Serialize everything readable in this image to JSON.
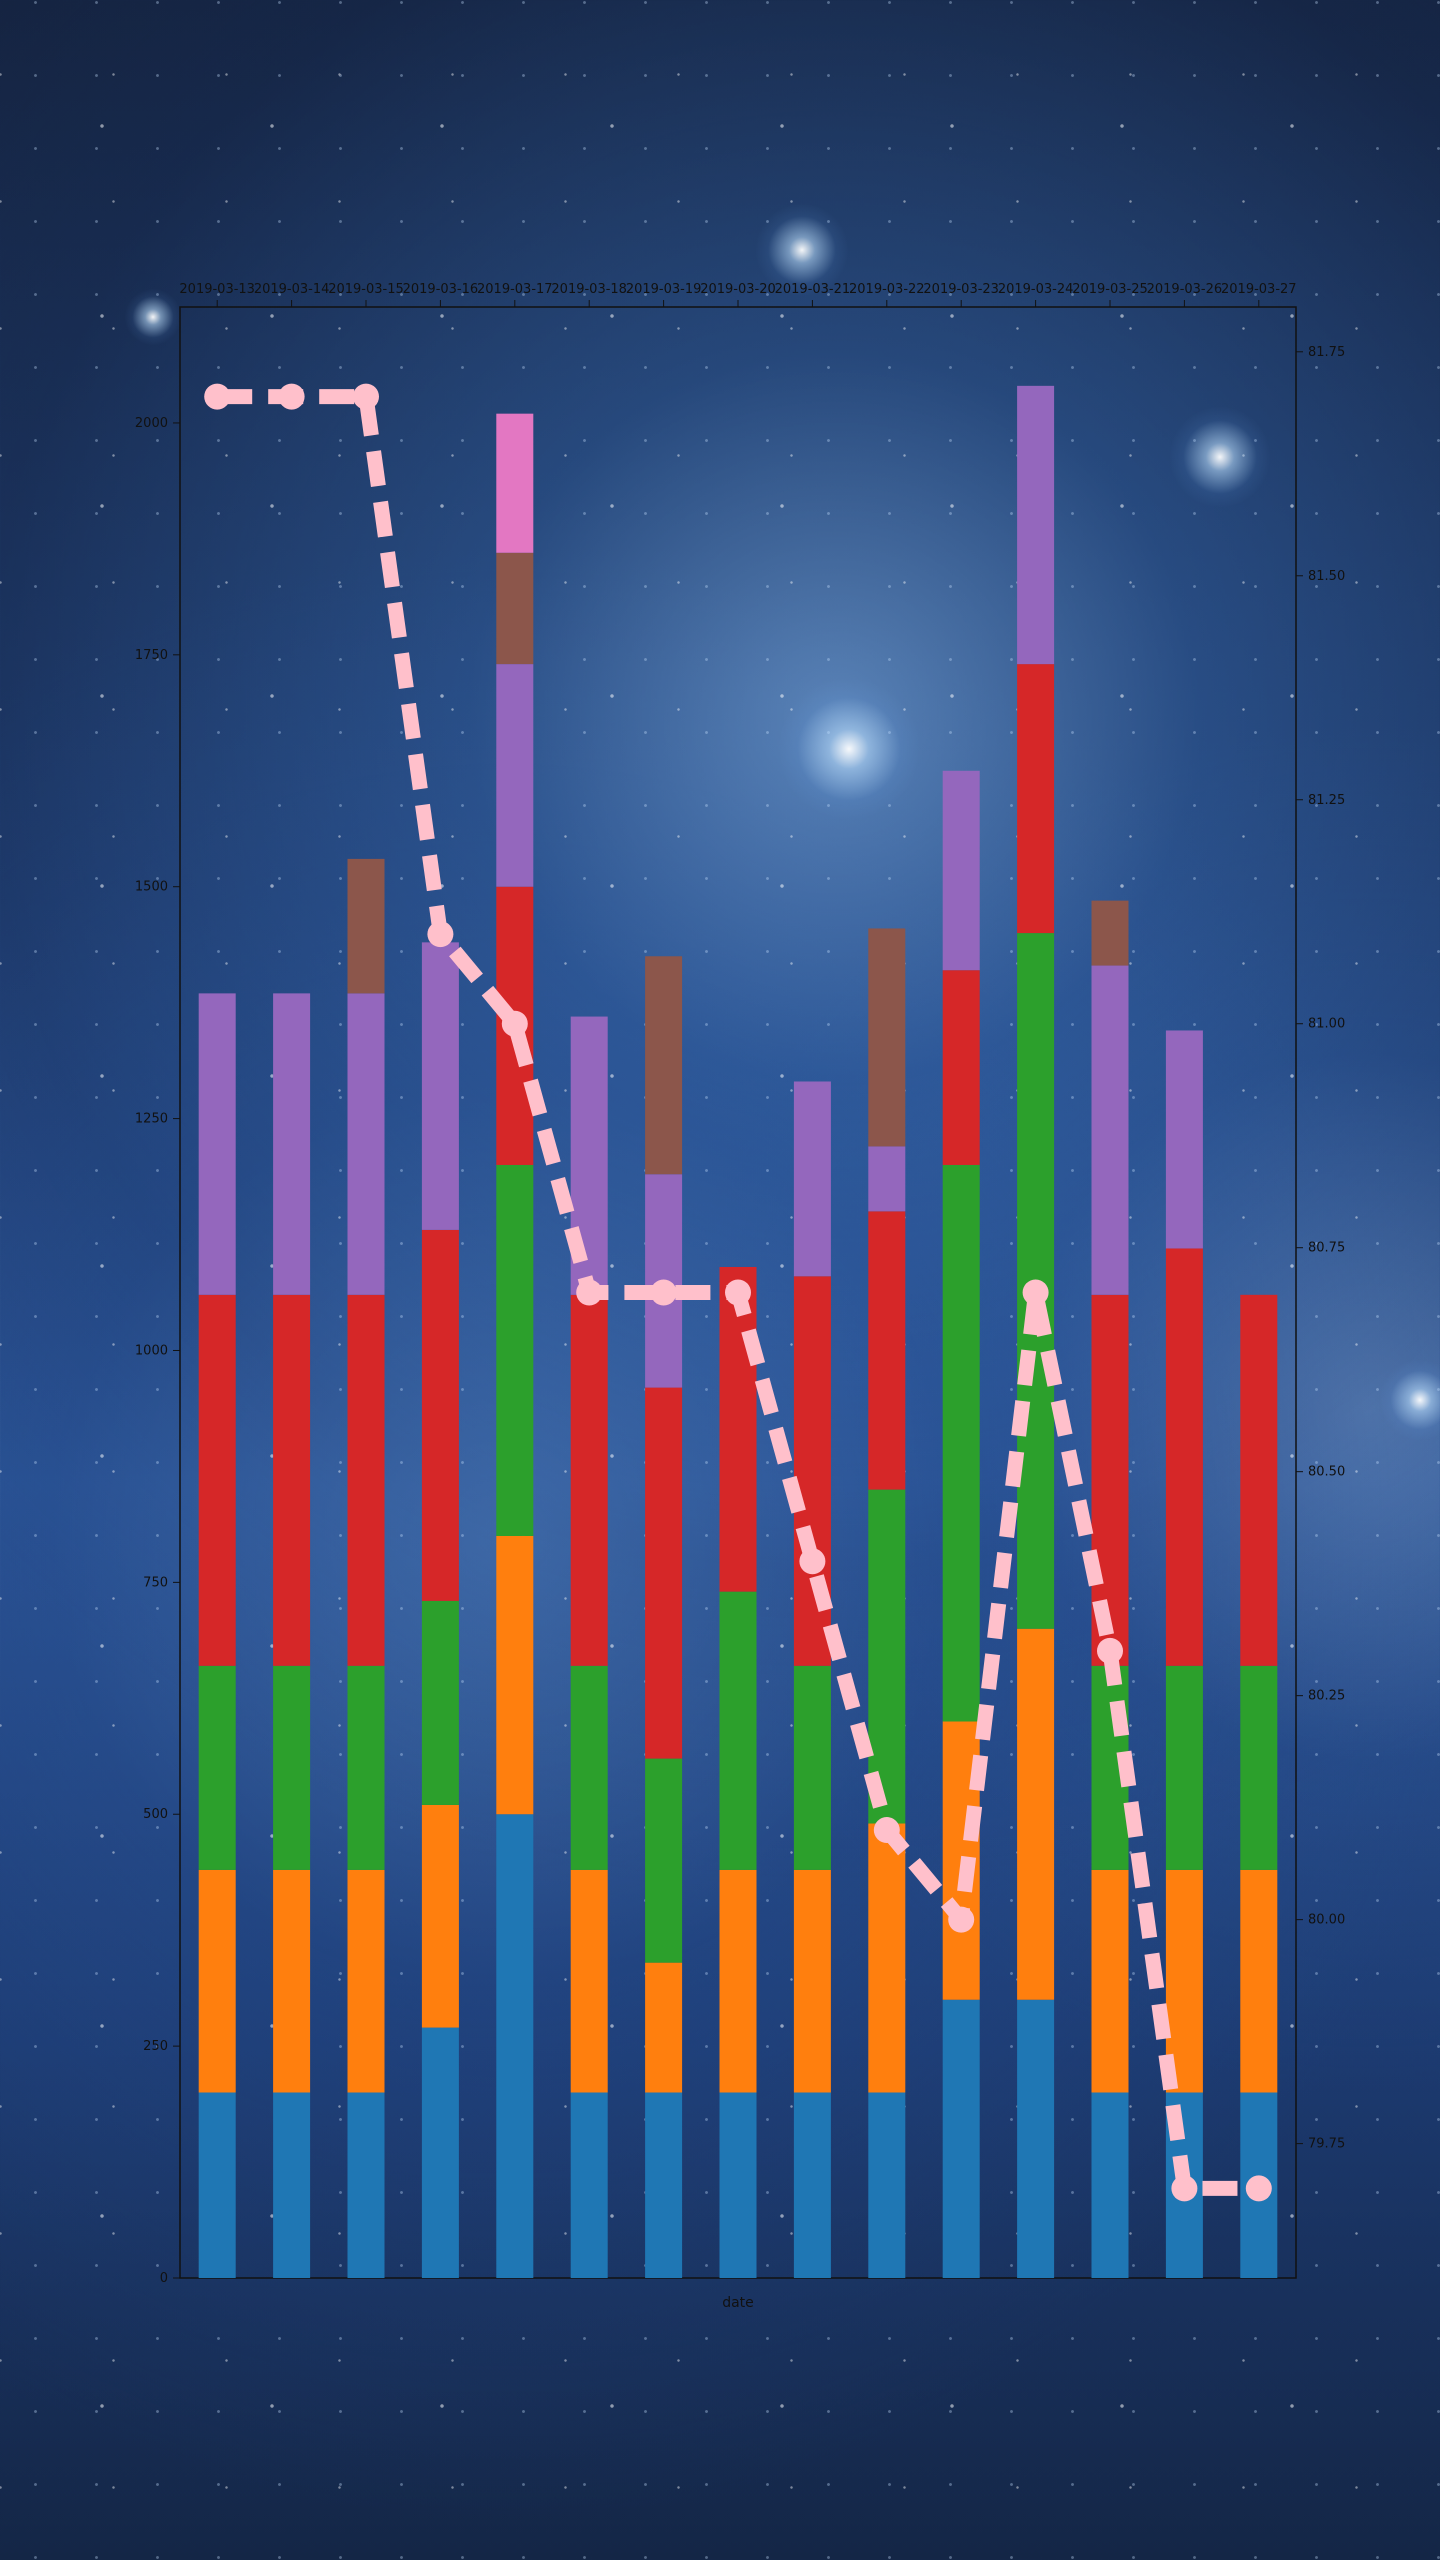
{
  "chart_data": {
    "type": "bar",
    "xlabel": "date",
    "categories": [
      "2019-03-13",
      "2019-03-14",
      "2019-03-15",
      "2019-03-16",
      "2019-03-17",
      "2019-03-18",
      "2019-03-19",
      "2019-03-20",
      "2019-03-21",
      "2019-03-22",
      "2019-03-23",
      "2019-03-24",
      "2019-03-25",
      "2019-03-26",
      "2019-03-27"
    ],
    "ylim": [
      0,
      2125
    ],
    "y2lim": [
      79.6,
      81.8
    ],
    "yticks": [
      0,
      250,
      500,
      750,
      1000,
      1250,
      1500,
      1750,
      2000
    ],
    "y2ticks": [
      "79.75",
      "80.00",
      "80.25",
      "80.50",
      "80.75",
      "81.00",
      "81.25",
      "81.50",
      "81.75"
    ],
    "series": [
      {
        "color": "#1f77b4",
        "values": [
          200,
          200,
          200,
          270,
          500,
          200,
          200,
          200,
          200,
          200,
          300,
          300,
          200,
          200,
          200
        ]
      },
      {
        "color": "#ff7f0e",
        "values": [
          240,
          240,
          240,
          240,
          300,
          240,
          140,
          240,
          240,
          290,
          300,
          400,
          240,
          240,
          240
        ]
      },
      {
        "color": "#2ca02c",
        "values": [
          220,
          220,
          220,
          220,
          400,
          220,
          220,
          300,
          220,
          360,
          600,
          750,
          220,
          220,
          220
        ]
      },
      {
        "color": "#d62728",
        "values": [
          400,
          400,
          400,
          400,
          300,
          400,
          400,
          350,
          420,
          300,
          210,
          290,
          400,
          450,
          400
        ]
      },
      {
        "color": "#9467bd",
        "values": [
          325,
          325,
          325,
          310,
          240,
          300,
          230,
          0,
          210,
          70,
          215,
          300,
          355,
          235,
          0
        ]
      },
      {
        "color": "#8c564b",
        "values": [
          0,
          0,
          145,
          0,
          120,
          0,
          235,
          0,
          0,
          235,
          0,
          0,
          70,
          0,
          0
        ]
      },
      {
        "color": "#e377c2",
        "values": [
          0,
          0,
          0,
          0,
          150,
          0,
          0,
          0,
          0,
          0,
          0,
          0,
          0,
          0,
          0
        ]
      }
    ],
    "line": {
      "color": "#ffc0cb",
      "style": "dashed",
      "axis": "right",
      "values": [
        81.7,
        81.7,
        81.7,
        81.1,
        81.0,
        80.7,
        80.7,
        80.7,
        80.4,
        80.1,
        80.0,
        80.7,
        80.3,
        79.7,
        79.7
      ]
    }
  }
}
